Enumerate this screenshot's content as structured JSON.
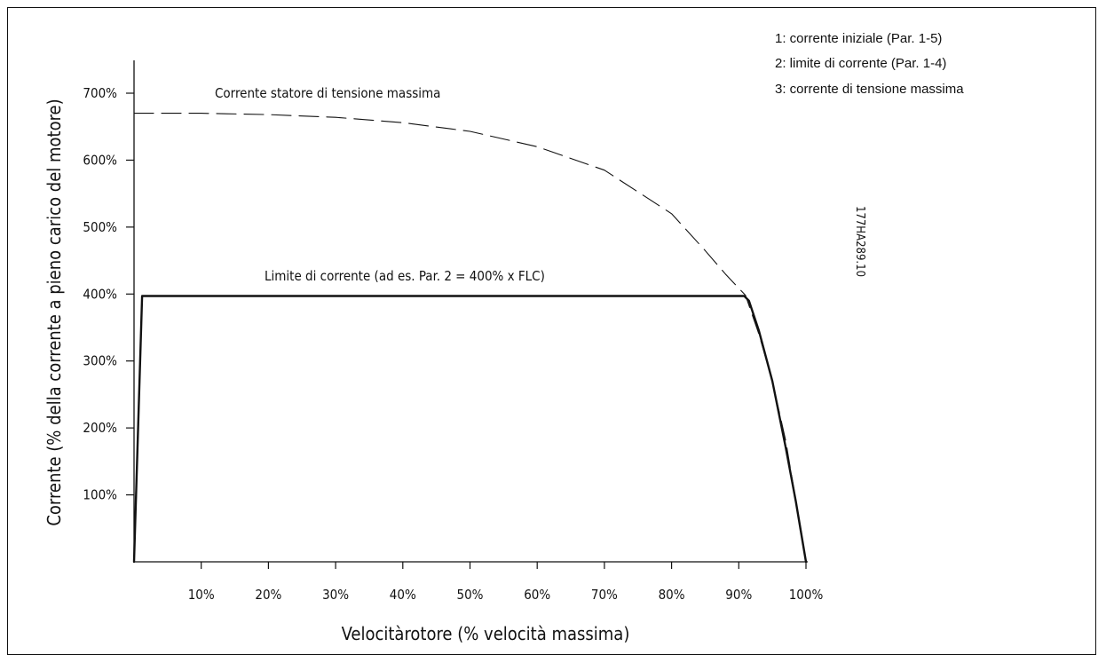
{
  "chart_data": {
    "type": "line",
    "xlabel": "Velocitàrotore (% velocità massima)",
    "ylabel": "Corrente (% della corrente a pieno carico del motore)",
    "x_ticks": [
      "10%",
      "20%",
      "30%",
      "40%",
      "50%",
      "60%",
      "70%",
      "80%",
      "90%",
      "100%"
    ],
    "y_ticks": [
      "100%",
      "200%",
      "300%",
      "400%",
      "500%",
      "600%",
      "700%"
    ],
    "xlim": [
      0,
      100
    ],
    "ylim": [
      0,
      750
    ],
    "grid": false,
    "series": [
      {
        "style": "dashed",
        "x": [
          0,
          10,
          20,
          30,
          40,
          50,
          60,
          70,
          80,
          85,
          88,
          91,
          93,
          95,
          97,
          98,
          99,
          100
        ],
        "y": [
          670,
          670,
          668,
          664,
          656,
          643,
          620,
          585,
          520,
          465,
          430,
          398,
          340,
          270,
          180,
          120,
          60,
          0
        ]
      },
      {
        "style": "solid",
        "x": [
          0,
          1.2,
          90.8,
          91.5,
          93,
          95,
          97,
          98.5,
          100
        ],
        "y": [
          0,
          397,
          397,
          390,
          345,
          270,
          170,
          90,
          0
        ]
      }
    ],
    "annotations": [
      {
        "text": "Corrente statore di tensione massima"
      },
      {
        "text": "Limite di corrente (ad es. Par. 2 = 400% x FLC)"
      }
    ]
  },
  "legend": [
    "1: corrente iniziale (Par. 1-5)",
    "2: limite di corrente (Par. 1-4)",
    "3: corrente di tensione massima"
  ],
  "figure_code": "177HA289.10",
  "colors": {
    "line": "#111111",
    "background": "#ffffff"
  }
}
